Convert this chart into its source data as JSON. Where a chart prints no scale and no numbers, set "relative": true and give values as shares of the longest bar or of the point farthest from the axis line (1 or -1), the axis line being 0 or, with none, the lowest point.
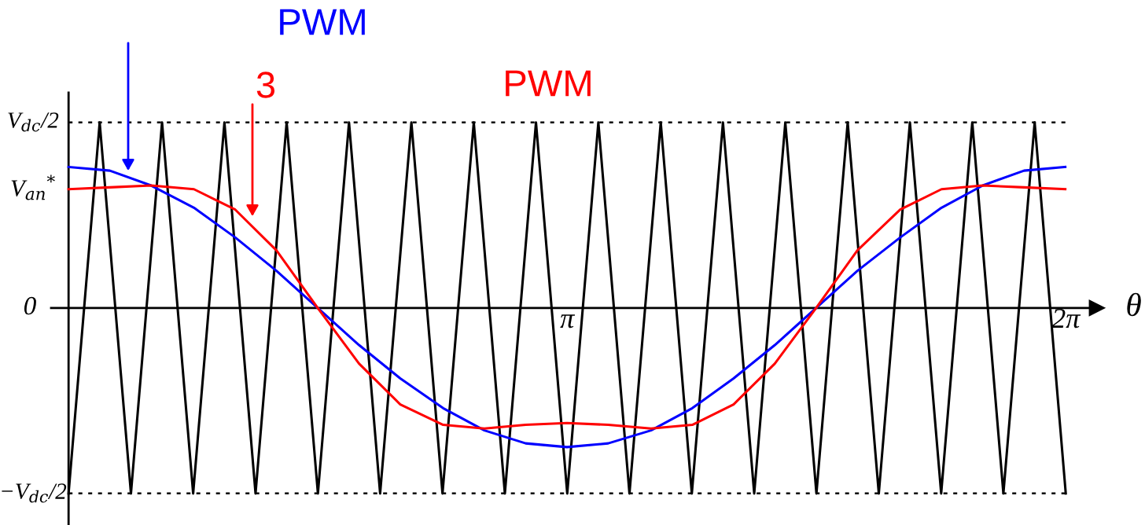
{
  "chart_data": {
    "type": "line",
    "xlabel": "θ",
    "relative": true,
    "xlim": [
      -0.11,
      6.48
    ],
    "xticks": [
      {
        "value": 3.1416,
        "label": "π"
      },
      {
        "value": 6.2832,
        "label": "2π"
      }
    ],
    "line_style": "solid",
    "series": [
      {
        "color": "#000000",
        "x": [
          0,
          0.196,
          0.393,
          0.589,
          0.785,
          0.982,
          1.178,
          1.374,
          1.571,
          1.767,
          1.963,
          2.16,
          2.356,
          2.553,
          2.749,
          2.945,
          3.142,
          3.338,
          3.534,
          3.731,
          3.927,
          4.123,
          4.32,
          4.516,
          4.712,
          4.909,
          5.105,
          5.301,
          5.498,
          5.694,
          5.89,
          6.087,
          6.283
        ],
        "values": [
          -1,
          1,
          -1,
          1,
          -1,
          1,
          -1,
          1,
          -1,
          1,
          -1,
          1,
          -1,
          1,
          -1,
          1,
          -1,
          1,
          -1,
          1,
          -1,
          1,
          -1,
          1,
          -1,
          1,
          -1,
          1,
          -1,
          1,
          -1,
          1,
          -1
        ]
      },
      {
        "color": "#0000ff",
        "x": [
          0,
          0.26,
          0.52,
          0.79,
          1.05,
          1.31,
          1.57,
          1.83,
          2.09,
          2.36,
          2.62,
          2.88,
          3.14,
          3.4,
          3.67,
          3.93,
          4.19,
          4.45,
          4.71,
          4.97,
          5.24,
          5.5,
          5.76,
          6.02,
          6.28
        ],
        "values": [
          0.76,
          0.74,
          0.66,
          0.54,
          0.38,
          0.2,
          0,
          -0.2,
          -0.38,
          -0.54,
          -0.66,
          -0.73,
          -0.75,
          -0.73,
          -0.66,
          -0.54,
          -0.38,
          -0.2,
          0,
          0.2,
          0.38,
          0.54,
          0.66,
          0.74,
          0.76
        ]
      },
      {
        "color": "#ff0000",
        "x": [
          0,
          0.26,
          0.52,
          0.79,
          1.05,
          1.31,
          1.57,
          1.83,
          2.09,
          2.36,
          2.62,
          2.88,
          3.14,
          3.4,
          3.67,
          3.93,
          4.19,
          4.45,
          4.71,
          4.97,
          5.24,
          5.5,
          5.76,
          6.02,
          6.28
        ],
        "values": [
          0.64,
          0.65,
          0.66,
          0.64,
          0.53,
          0.31,
          0,
          -0.3,
          -0.52,
          -0.63,
          -0.65,
          -0.63,
          -0.62,
          -0.63,
          -0.65,
          -0.63,
          -0.52,
          -0.3,
          0,
          0.31,
          0.53,
          0.64,
          0.66,
          0.65,
          0.64
        ]
      }
    ],
    "ref_lines": [
      {
        "axis": "y",
        "value": 1,
        "label": "V$_{dc}$/2",
        "color": "#000000",
        "line_style": "dotted"
      },
      {
        "axis": "y",
        "value": -1,
        "label": "−V$_{dc}$/2",
        "color": "#000000",
        "line_style": "dotted"
      }
    ],
    "annotations": [
      "PWM",
      "3",
      "PWM",
      "V$_{an}$$^{*}$",
      "0"
    ]
  }
}
